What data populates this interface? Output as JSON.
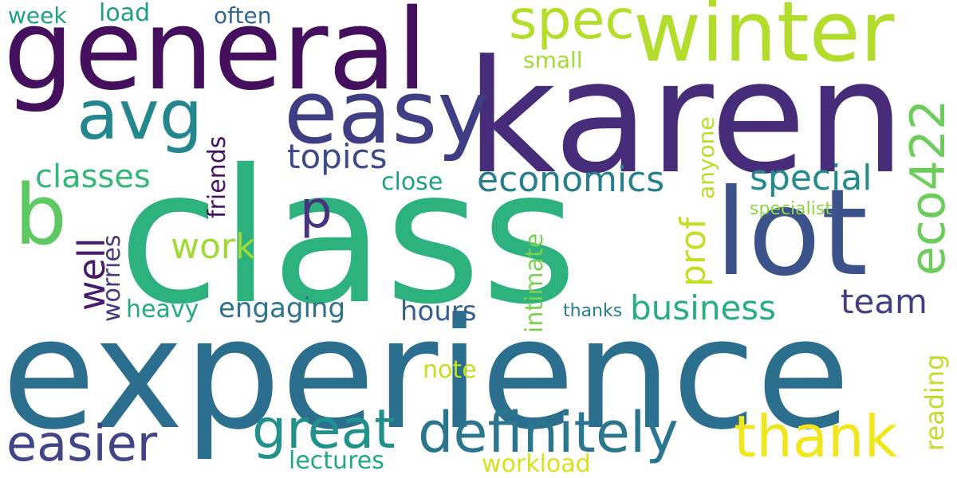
{
  "words": {
    "class": {
      "text": "class",
      "color": "#2db27d"
    },
    "experience": {
      "text": "experience",
      "color": "#2c6e8e"
    },
    "karen": {
      "text": "karen",
      "color": "#472c7a"
    },
    "general": {
      "text": "general",
      "color": "#440f5c"
    },
    "winter": {
      "text": "winter",
      "color": "#b2dd2c"
    },
    "lot": {
      "text": "lot",
      "color": "#3b528b"
    },
    "easy": {
      "text": "easy",
      "color": "#3f3d83"
    },
    "avg": {
      "text": "avg",
      "color": "#24878e"
    },
    "b": {
      "text": "b",
      "color": "#5ec962"
    },
    "spec": {
      "text": "spec",
      "color": "#b5de2b"
    },
    "definitely": {
      "text": "definitely",
      "color": "#2a768e"
    },
    "thank": {
      "text": "thank",
      "color": "#f1e51d"
    },
    "great": {
      "text": "great",
      "color": "#21918c"
    },
    "easier": {
      "text": "easier",
      "color": "#414487"
    },
    "eco422": {
      "text": "eco422",
      "color": "#6ccd5a"
    },
    "p": {
      "text": "p",
      "color": "#46327e"
    },
    "economics": {
      "text": "economics",
      "color": "#277f8e"
    },
    "special": {
      "text": "special",
      "color": "#228c8d"
    },
    "business": {
      "text": "business",
      "color": "#28ae80"
    },
    "topics": {
      "text": "topics",
      "color": "#3e4989"
    },
    "classes": {
      "text": "classes",
      "color": "#35b779"
    },
    "work": {
      "text": "work",
      "color": "#a0da39"
    },
    "team": {
      "text": "team",
      "color": "#433e85"
    },
    "prof": {
      "text": "prof",
      "color": "#c2df23"
    },
    "well": {
      "text": "well",
      "color": "#481b6d"
    },
    "hours": {
      "text": "hours",
      "color": "#355f8d"
    },
    "engaging": {
      "text": "engaging",
      "color": "#2d718e"
    },
    "heavy": {
      "text": "heavy",
      "color": "#25ab82"
    },
    "note": {
      "text": "note",
      "color": "#c5e021"
    },
    "lectures": {
      "text": "lectures",
      "color": "#22a785"
    },
    "workload": {
      "text": "workload",
      "color": "#d8e219"
    },
    "reading": {
      "text": "reading",
      "color": "#bddf26"
    },
    "close": {
      "text": "close",
      "color": "#1f9f88"
    },
    "friends": {
      "text": "friends",
      "color": "#471063"
    },
    "worries": {
      "text": "worries",
      "color": "#443983"
    },
    "intimate": {
      "text": "intimate",
      "color": "#7ad151"
    },
    "anyone": {
      "text": "anyone",
      "color": "#bade28"
    },
    "specialist": {
      "text": "specialist",
      "color": "#8ed645"
    },
    "thanks": {
      "text": "thanks",
      "color": "#277e8e"
    },
    "small": {
      "text": "small",
      "color": "#a2da37"
    },
    "load": {
      "text": "load",
      "color": "#1e9c89"
    },
    "often": {
      "text": "often",
      "color": "#31668e"
    },
    "week": {
      "text": "week",
      "color": "#1fa088"
    }
  }
}
